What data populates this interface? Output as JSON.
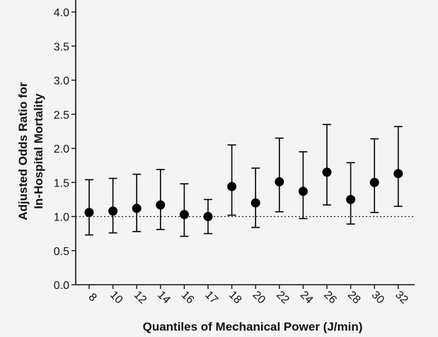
{
  "chart_data": {
    "type": "scatter",
    "subtype": "point-with-error-bars",
    "xlabel": "Quantiles of Mechanical Power (J/min)",
    "ylabel_lines": [
      "Adjusted Odds Ratio for",
      "In-Hospital  Mortality"
    ],
    "ylim": [
      0.0,
      4.0
    ],
    "yticks": [
      "0.0",
      "0.5",
      "1.0",
      "1.5",
      "2.0",
      "2.5",
      "3.0",
      "3.5",
      "4.0"
    ],
    "reference_line": 1.0,
    "categories": [
      "8",
      "10",
      "12",
      "14",
      "16",
      "17",
      "18",
      "20",
      "22",
      "24",
      "26",
      "28",
      "30",
      "32"
    ],
    "values": [
      1.06,
      1.08,
      1.12,
      1.17,
      1.03,
      1.0,
      1.44,
      1.2,
      1.51,
      1.37,
      1.65,
      1.25,
      1.5,
      1.63
    ],
    "lower": [
      0.73,
      0.76,
      0.78,
      0.81,
      0.71,
      0.75,
      1.02,
      0.84,
      1.07,
      0.97,
      1.17,
      0.89,
      1.06,
      1.15
    ],
    "upper": [
      1.54,
      1.56,
      1.62,
      1.69,
      1.48,
      1.25,
      2.05,
      1.71,
      2.15,
      1.95,
      2.35,
      1.79,
      2.14,
      2.32
    ],
    "grid": false,
    "marker_color": "#000000"
  }
}
